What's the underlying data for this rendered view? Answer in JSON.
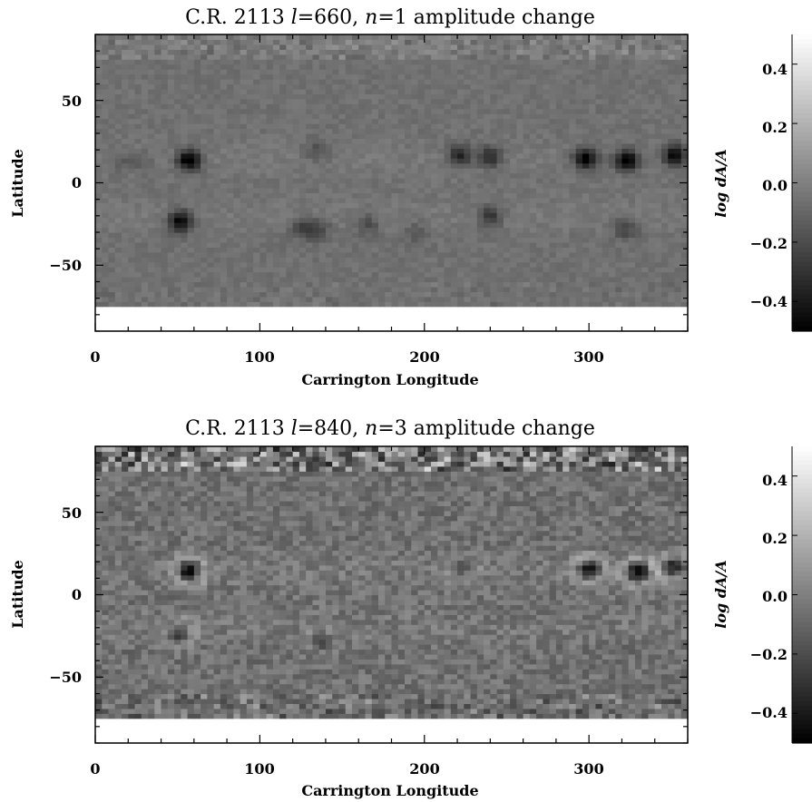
{
  "chart_data": [
    {
      "type": "heatmap",
      "title": {
        "prefix": "C.R. 2113 ",
        "l_symbol": "l",
        "l_value": "=660, ",
        "n_symbol": "n",
        "n_value": "=1 amplitude change"
      },
      "xlabel": "Carrington Longitude",
      "ylabel": "Latitude",
      "xlim": [
        0,
        360
      ],
      "ylim": [
        -90,
        90
      ],
      "xticks": [
        "0",
        "100",
        "200",
        "300"
      ],
      "yticks": [
        "50",
        "0",
        "−50"
      ],
      "xtick_values": [
        0,
        100,
        200,
        300
      ],
      "ytick_values": [
        50,
        0,
        -50
      ],
      "data_lat_range": [
        -75,
        90
      ],
      "colorbar": {
        "label": "log dA/A",
        "range": [
          -0.5,
          0.5
        ],
        "ticks": [
          "0.4",
          "0.2",
          "0.0",
          "−0.2",
          "−0.4"
        ],
        "tick_values": [
          0.4,
          0.2,
          0.0,
          -0.2,
          -0.4
        ]
      },
      "features": [
        {
          "lon": 57,
          "lat": 14,
          "value": -0.5
        },
        {
          "lon": 52,
          "lat": -23,
          "value": -0.45
        },
        {
          "lon": 298,
          "lat": 15,
          "value": -0.48
        },
        {
          "lon": 323,
          "lat": 14,
          "value": -0.5
        },
        {
          "lon": 352,
          "lat": 17,
          "value": -0.45
        },
        {
          "lon": 222,
          "lat": 17,
          "value": -0.32
        },
        {
          "lon": 240,
          "lat": 16,
          "value": -0.3
        },
        {
          "lon": 135,
          "lat": -28,
          "value": -0.2
        },
        {
          "lon": 125,
          "lat": -27,
          "value": -0.18
        },
        {
          "lon": 240,
          "lat": -20,
          "value": -0.25
        },
        {
          "lon": 165,
          "lat": -25,
          "value": -0.16
        },
        {
          "lon": 322,
          "lat": -27,
          "value": -0.2
        },
        {
          "lon": 135,
          "lat": 20,
          "value": -0.14
        },
        {
          "lon": 195,
          "lat": -30,
          "value": -0.12
        },
        {
          "lon": 15,
          "lat": 14,
          "value": -0.1
        },
        {
          "lon": 28,
          "lat": 13,
          "value": -0.1
        }
      ]
    },
    {
      "type": "heatmap",
      "title": {
        "prefix": "C.R. 2113 ",
        "l_symbol": "l",
        "l_value": "=840, ",
        "n_symbol": "n",
        "n_value": "=3 amplitude change"
      },
      "xlabel": "Carrington Longitude",
      "ylabel": "Latitude",
      "xlim": [
        0,
        360
      ],
      "ylim": [
        -90,
        90
      ],
      "xticks": [
        "0",
        "100",
        "200",
        "300"
      ],
      "yticks": [
        "50",
        "0",
        "−50"
      ],
      "xtick_values": [
        0,
        100,
        200,
        300
      ],
      "ytick_values": [
        50,
        0,
        -50
      ],
      "data_lat_range": [
        -75,
        90
      ],
      "colorbar": {
        "label": "log dA/A",
        "range": [
          -0.5,
          0.5
        ],
        "ticks": [
          "0.4",
          "0.2",
          "0.0",
          "−0.2",
          "−0.4"
        ],
        "tick_values": [
          0.4,
          0.2,
          0.0,
          -0.2,
          -0.4
        ]
      },
      "features": [
        {
          "lon": 57,
          "lat": 15,
          "value": -0.4
        },
        {
          "lon": 50,
          "lat": -23,
          "value": -0.2
        },
        {
          "lon": 300,
          "lat": 15,
          "value": -0.4
        },
        {
          "lon": 330,
          "lat": 14,
          "value": -0.45
        },
        {
          "lon": 352,
          "lat": 17,
          "value": -0.3
        },
        {
          "lon": 138,
          "lat": -28,
          "value": -0.12
        },
        {
          "lon": 222,
          "lat": 17,
          "value": -0.15
        }
      ]
    }
  ]
}
